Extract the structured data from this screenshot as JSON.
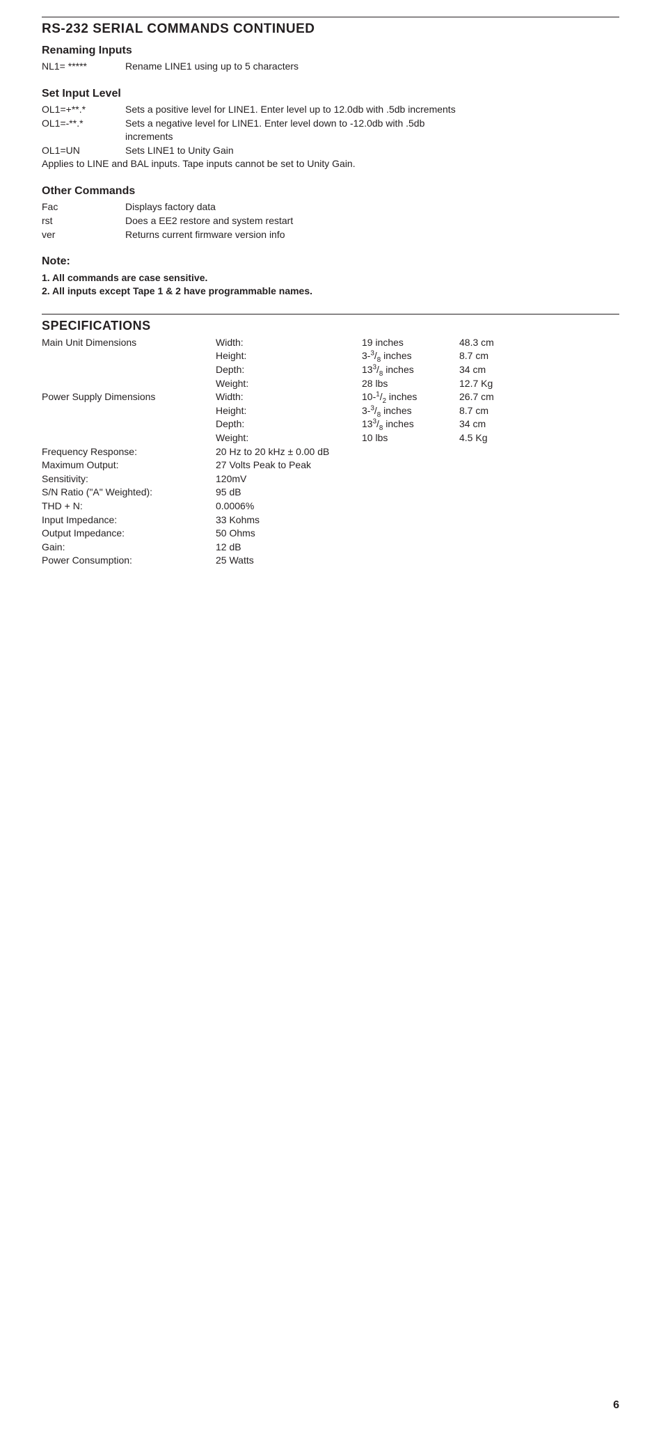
{
  "title": "RS-232 SERIAL COMMANDS CONTINUED",
  "rename": {
    "heading": "Renaming Inputs",
    "cmd": "NL1= *****",
    "desc": "Rename LINE1 using up to 5 characters"
  },
  "setlevel": {
    "heading": "Set Input Level",
    "rows": [
      {
        "cmd": "OL1=+**.*",
        "desc": "Sets a positive level for LINE1. Enter level up to 12.0db with .5db increments"
      },
      {
        "cmd": "OL1=-**.*",
        "desc": "Sets a negative level for LINE1. Enter level down to -12.0db with .5db increments",
        "wrap1": "Sets a negative level for LINE1. Enter level down to -12.0db with .5db",
        "wrap2": "increments"
      },
      {
        "cmd": "OL1=UN",
        "desc": "Sets LINE1 to Unity Gain"
      }
    ],
    "note": "Applies to LINE and BAL inputs. Tape inputs cannot be set to Unity Gain."
  },
  "other": {
    "heading": "Other Commands",
    "rows": [
      {
        "cmd": "Fac",
        "desc": "Displays factory data"
      },
      {
        "cmd": "rst",
        "desc": "Does a EE2 restore and system restart"
      },
      {
        "cmd": "ver",
        "desc": "Returns current firmware version info"
      }
    ]
  },
  "notes": {
    "heading": "Note:",
    "line1": "1. All commands are case sensitive.",
    "line2": "2. All inputs except Tape 1 & 2 have programmable names."
  },
  "specs": {
    "heading": "SPECIFICATIONS",
    "rows": [
      {
        "label": "Main Unit Dimensions",
        "k": "Width:",
        "v1": "19 inches",
        "v2": "48.3 cm"
      },
      {
        "label": "",
        "k": "Height:",
        "v1_html": "3-<span class='sup'>3</span>/<span class='sub'>8</span> inches",
        "v2": "8.7 cm"
      },
      {
        "label": "",
        "k": "Depth:",
        "v1_html": "13<span class='sup'>3</span>/<span class='sub'>8</span> inches",
        "v2": "34 cm"
      },
      {
        "label": "",
        "k": "Weight:",
        "v1": "28 lbs",
        "v2": "12.7 Kg"
      },
      {
        "label": "Power Supply Dimensions",
        "k": "Width:",
        "v1_html": "10-<span class='sup'>1</span>/<span class='sub'>2</span> inches",
        "v2": "26.7 cm"
      },
      {
        "label": "",
        "k": "Height:",
        "v1_html": "3-<span class='sup'>3</span>/<span class='sub'>8</span> inches",
        "v2": "8.7 cm"
      },
      {
        "label": "",
        "k": "Depth:",
        "v1_html": "13<span class='sup'>3</span>/<span class='sub'>8</span> inches",
        "v2": "34 cm"
      },
      {
        "label": "",
        "k": "Weight:",
        "v1": "10 lbs",
        "v2": "4.5 Kg"
      },
      {
        "label": "Frequency Response:",
        "k": "20 Hz to 20 kHz ± 0.00 dB",
        "v1": "",
        "v2": ""
      },
      {
        "label": "Maximum Output:",
        "k": "27 Volts Peak to Peak",
        "v1": "",
        "v2": ""
      },
      {
        "label": "Sensitivity:",
        "k": "120mV",
        "v1": "",
        "v2": ""
      },
      {
        "label": "S/N Ratio (\"A\" Weighted):",
        "k": "95 dB",
        "v1": "",
        "v2": ""
      },
      {
        "label": "THD + N:",
        "k": "0.0006%",
        "v1": "",
        "v2": ""
      },
      {
        "label": "Input Impedance:",
        "k": "33 Kohms",
        "v1": "",
        "v2": ""
      },
      {
        "label": "Output Impedance:",
        "k": "50 Ohms",
        "v1": "",
        "v2": ""
      },
      {
        "label": "Gain:",
        "k": "12 dB",
        "v1": "",
        "v2": ""
      },
      {
        "label": "Power Consumption:",
        "k": "25 Watts",
        "v1": "",
        "v2": ""
      }
    ]
  },
  "page_number": "6"
}
